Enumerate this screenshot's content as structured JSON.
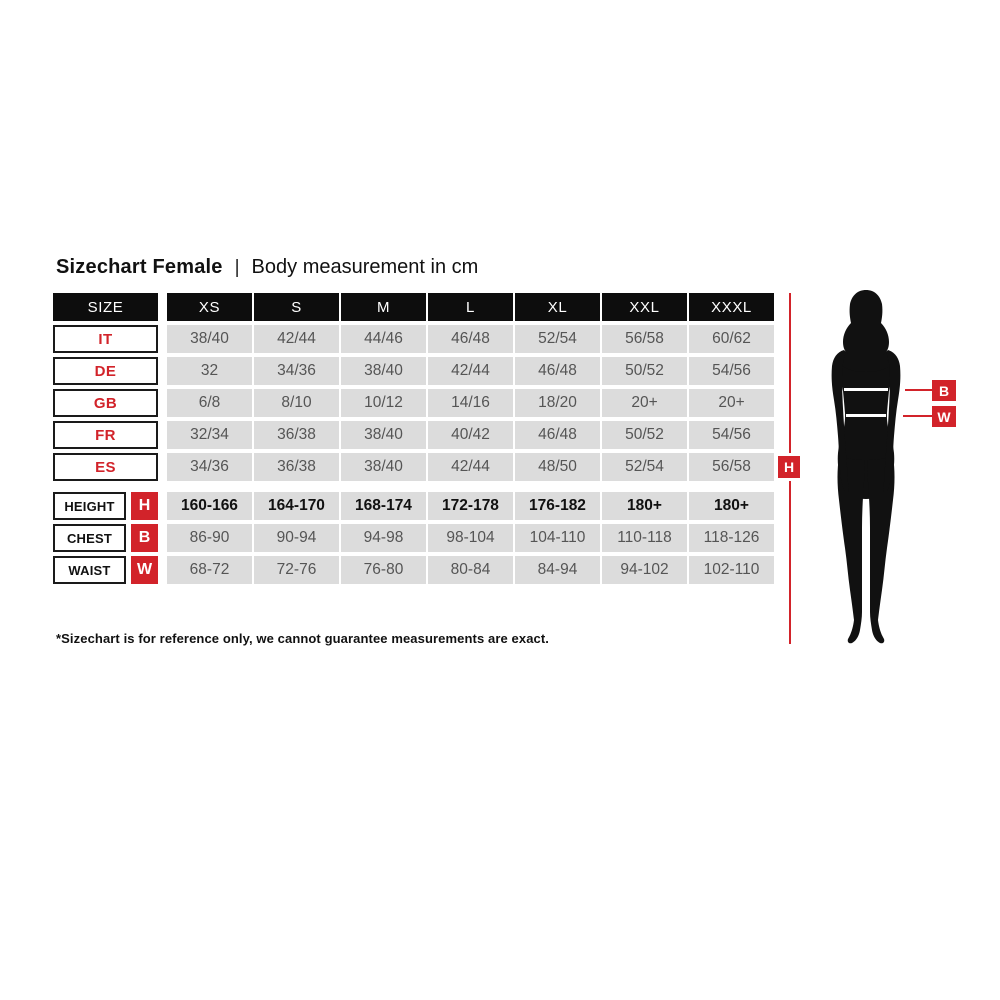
{
  "title": {
    "main": "Sizechart Female",
    "separator": "|",
    "subtitle": "Body measurement in cm"
  },
  "size_table": {
    "header": [
      "SIZE",
      "XS",
      "S",
      "M",
      "L",
      "XL",
      "XXL",
      "XXXL"
    ],
    "country_rows": [
      {
        "code": "IT",
        "values": [
          "38/40",
          "42/44",
          "44/46",
          "46/48",
          "52/54",
          "56/58",
          "60/62"
        ]
      },
      {
        "code": "DE",
        "values": [
          "32",
          "34/36",
          "38/40",
          "42/44",
          "46/48",
          "50/52",
          "54/56"
        ]
      },
      {
        "code": "GB",
        "values": [
          "6/8",
          "8/10",
          "10/12",
          "14/16",
          "18/20",
          "20+",
          "20+"
        ]
      },
      {
        "code": "FR",
        "values": [
          "32/34",
          "36/38",
          "38/40",
          "40/42",
          "46/48",
          "50/52",
          "54/56"
        ]
      },
      {
        "code": "ES",
        "values": [
          "34/36",
          "36/38",
          "38/40",
          "42/44",
          "48/50",
          "52/54",
          "56/58"
        ]
      }
    ],
    "measurement_rows": [
      {
        "label": "HEIGHT",
        "marker": "H",
        "bold": true,
        "values": [
          "160-166",
          "164-170",
          "168-174",
          "172-178",
          "176-182",
          "180+",
          "180+"
        ]
      },
      {
        "label": "CHEST",
        "marker": "B",
        "bold": false,
        "values": [
          "86-90",
          "90-94",
          "94-98",
          "98-104",
          "104-110",
          "110-118",
          "118-126"
        ]
      },
      {
        "label": "WAIST",
        "marker": "W",
        "bold": false,
        "values": [
          "68-72",
          "72-76",
          "76-80",
          "80-84",
          "84-94",
          "94-102",
          "102-110"
        ]
      }
    ]
  },
  "figure": {
    "height_marker": "H",
    "bust_marker": "B",
    "waist_marker": "W"
  },
  "footnote": "*Sizechart is for reference only, we cannot guarantee measurements are exact.",
  "colors": {
    "accent_red": "#d2232a",
    "header_bg": "#0d0d0d",
    "cell_bg": "#dcdcdc",
    "cell_text": "#555555",
    "silhouette": "#111111"
  },
  "chart_data": {
    "type": "table",
    "title": "Sizechart Female | Body measurement in cm",
    "columns": [
      "SIZE",
      "XS",
      "S",
      "M",
      "L",
      "XL",
      "XXL",
      "XXXL"
    ],
    "rows": [
      [
        "IT",
        "38/40",
        "42/44",
        "44/46",
        "46/48",
        "52/54",
        "56/58",
        "60/62"
      ],
      [
        "DE",
        "32",
        "34/36",
        "38/40",
        "42/44",
        "46/48",
        "50/52",
        "54/56"
      ],
      [
        "GB",
        "6/8",
        "8/10",
        "10/12",
        "14/16",
        "18/20",
        "20+",
        "20+"
      ],
      [
        "FR",
        "32/34",
        "36/38",
        "38/40",
        "40/42",
        "46/48",
        "50/52",
        "54/56"
      ],
      [
        "ES",
        "34/36",
        "36/38",
        "38/40",
        "42/44",
        "48/50",
        "52/54",
        "56/58"
      ],
      [
        "HEIGHT (H)",
        "160-166",
        "164-170",
        "168-174",
        "172-178",
        "176-182",
        "180+",
        "180+"
      ],
      [
        "CHEST (B)",
        "86-90",
        "90-94",
        "94-98",
        "98-104",
        "104-110",
        "110-118",
        "118-126"
      ],
      [
        "WAIST (W)",
        "68-72",
        "72-76",
        "76-80",
        "80-84",
        "84-94",
        "94-102",
        "102-110"
      ]
    ],
    "footnote": "*Sizechart is for reference only, we cannot guarantee measurements are exact."
  }
}
